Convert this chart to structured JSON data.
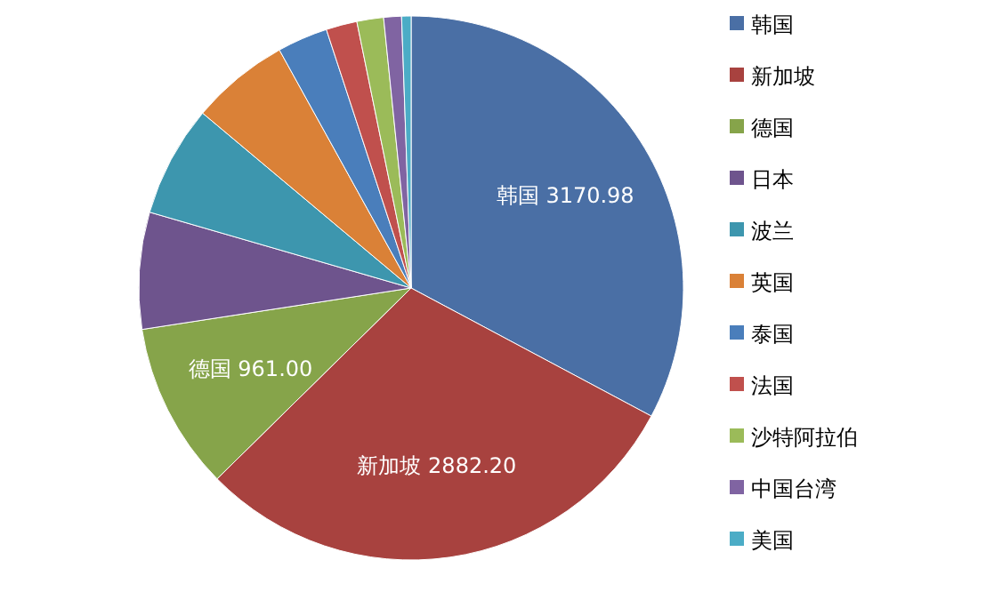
{
  "chart_data": {
    "type": "pie",
    "categories": [
      "韩国",
      "新加坡",
      "德国",
      "日本",
      "波兰",
      "英国",
      "泰国",
      "法国",
      "沙特阿拉伯",
      "中国台湾",
      "美国"
    ],
    "values": [
      3170.98,
      2882.2,
      961.0,
      670,
      640,
      565,
      290,
      178,
      153,
      102,
      54
    ],
    "value_labels": [
      "3170.98",
      "2882.20",
      "961.00",
      null,
      null,
      null,
      null,
      null,
      null,
      null,
      null
    ],
    "colors": [
      "#4a6fa5",
      "#a8423f",
      "#86a44a",
      "#6e548d",
      "#3d96ae",
      "#da8137",
      "#4a7ebb",
      "#c0504d",
      "#9bbb59",
      "#8064a2",
      "#4bacc6"
    ],
    "legend": "right"
  }
}
